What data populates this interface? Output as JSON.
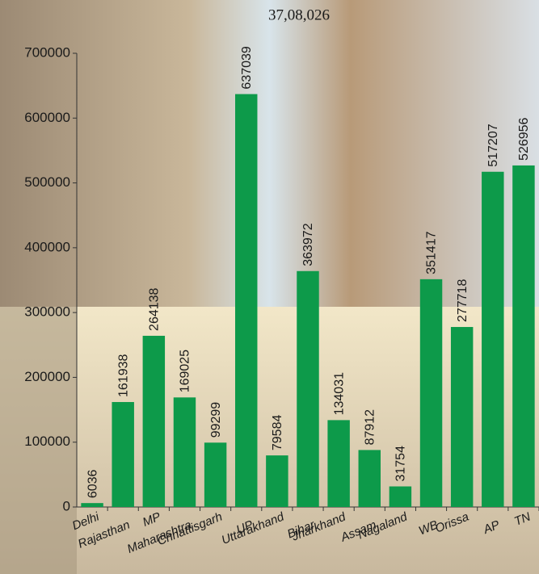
{
  "chart_data": {
    "type": "bar",
    "subtitle": "37,08,026",
    "categories": [
      "Delhi",
      "Rajasthan",
      "MP",
      "Maharashtra",
      "Chhattisgarh",
      "UP",
      "Uttarakhand",
      "Bihar",
      "Jharkhand",
      "Assam",
      "Nagaland",
      "WB",
      "Orissa",
      "AP",
      "TN"
    ],
    "values": [
      6036,
      161938,
      264138,
      169025,
      99299,
      637039,
      79584,
      363972,
      134031,
      87912,
      31754,
      351417,
      277718,
      517207,
      526956
    ],
    "color": "#0d9a4a",
    "ylim": [
      0,
      700000
    ],
    "yticks": [
      0,
      100000,
      200000,
      300000,
      400000,
      500000,
      600000,
      700000
    ]
  }
}
